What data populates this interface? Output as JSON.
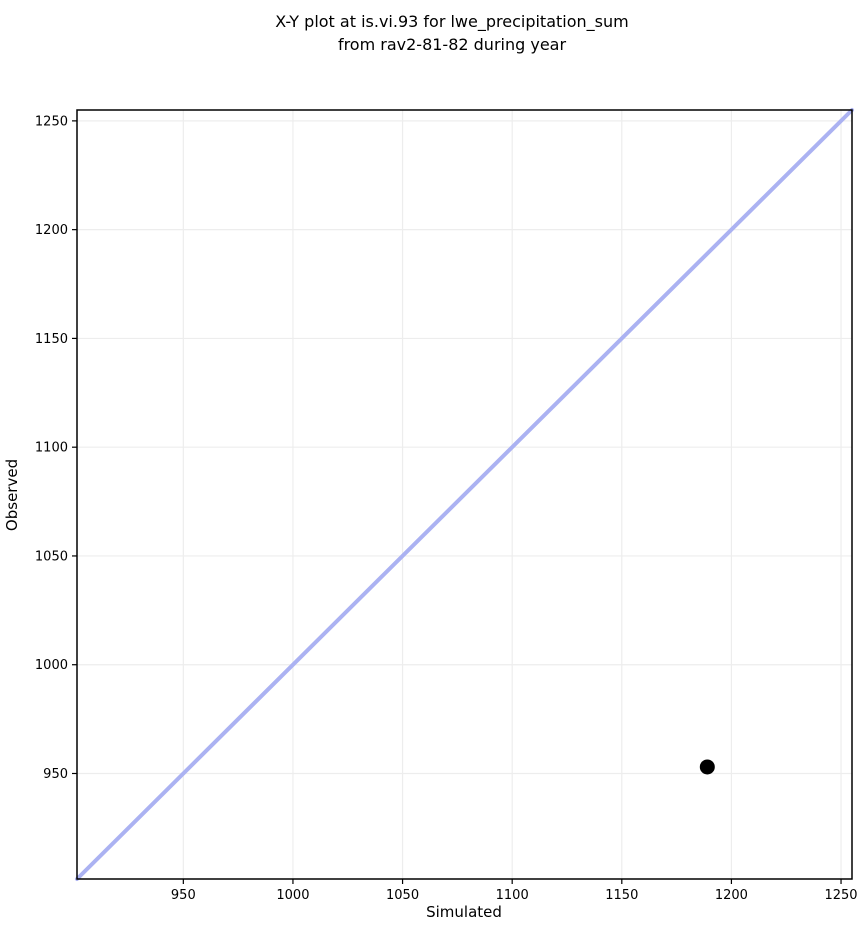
{
  "title": {
    "line1": "X-Y plot at is.vi.93 for lwe_precipitation_sum",
    "line2": "from rav2-81-82 during year"
  },
  "chart_data": {
    "type": "scatter",
    "title": "X-Y plot at is.vi.93 for lwe_precipitation_sum\nfrom rav2-81-82 during year",
    "xlabel": "Simulated",
    "ylabel": "Observed",
    "xlim": [
      901.5,
      1255
    ],
    "ylim": [
      901.5,
      1255
    ],
    "xticks": [
      950,
      1000,
      1050,
      1100,
      1150,
      1200,
      1250
    ],
    "yticks": [
      950,
      1000,
      1050,
      1100,
      1150,
      1200,
      1250
    ],
    "grid": true,
    "legend": "none",
    "series": [
      {
        "name": "identity-line",
        "kind": "line",
        "x": [
          901.5,
          1255
        ],
        "y": [
          901.5,
          1255
        ],
        "color": "#abb2f2",
        "width": 4
      },
      {
        "name": "data-points",
        "kind": "scatter",
        "points": [
          {
            "x": 1189,
            "y": 953
          }
        ],
        "color": "#000000",
        "radius": 7.5
      }
    ],
    "colors": {
      "background": "#ffffff",
      "grid": "#ededed",
      "spine": "#000000",
      "tick": "#000000",
      "text": "#000000"
    }
  }
}
